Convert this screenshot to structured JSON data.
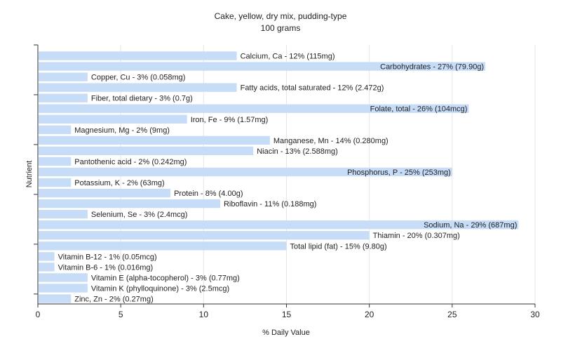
{
  "chart_data": {
    "type": "bar",
    "orientation": "horizontal",
    "title": "Cake, yellow, dry mix, pudding-type",
    "subtitle": "100 grams",
    "xlabel": "% Daily Value",
    "ylabel": "Nutrient",
    "xlim": [
      0,
      30
    ],
    "xticks": [
      0,
      5,
      10,
      15,
      20,
      25,
      30
    ],
    "grid": "vertical",
    "bar_color": "#c6dcf7",
    "categories": [
      "Calcium, Ca",
      "Carbohydrates",
      "Copper, Cu",
      "Fatty acids, total saturated",
      "Fiber, total dietary",
      "Folate, total",
      "Iron, Fe",
      "Magnesium, Mg",
      "Manganese, Mn",
      "Niacin",
      "Pantothenic acid",
      "Phosphorus, P",
      "Potassium, K",
      "Protein",
      "Riboflavin",
      "Selenium, Se",
      "Sodium, Na",
      "Thiamin",
      "Total lipid (fat)",
      "Vitamin B-12",
      "Vitamin B-6",
      "Vitamin E (alpha-tocopherol)",
      "Vitamin K (phylloquinone)",
      "Zinc, Zn"
    ],
    "values": [
      12,
      27,
      3,
      12,
      3,
      26,
      9,
      2,
      14,
      13,
      2,
      25,
      2,
      8,
      11,
      3,
      29,
      20,
      15,
      1,
      1,
      3,
      3,
      2
    ],
    "labels": [
      "Calcium, Ca - 12% (115mg)",
      "Carbohydrates - 27% (79.90g)",
      "Copper, Cu - 3% (0.058mg)",
      "Fatty acids, total saturated - 12% (2.472g)",
      "Fiber, total dietary - 3% (0.7g)",
      "Folate, total - 26% (104mcg)",
      "Iron, Fe - 9% (1.57mg)",
      "Magnesium, Mg - 2% (9mg)",
      "Manganese, Mn - 14% (0.280mg)",
      "Niacin - 13% (2.588mg)",
      "Pantothenic acid - 2% (0.242mg)",
      "Phosphorus, P - 25% (253mg)",
      "Potassium, K - 2% (63mg)",
      "Protein - 8% (4.00g)",
      "Riboflavin - 11% (0.188mg)",
      "Selenium, Se - 3% (2.4mcg)",
      "Sodium, Na - 29% (687mg)",
      "Thiamin - 20% (0.307mg)",
      "Total lipid (fat) - 15% (9.80g)",
      "Vitamin B-12 - 1% (0.05mcg)",
      "Vitamin B-6 - 1% (0.016mg)",
      "Vitamin E (alpha-tocopherol) - 3% (0.77mg)",
      "Vitamin K (phylloquinone) - 3% (2.5mcg)",
      "Zinc, Zn - 2% (0.27mg)"
    ]
  }
}
